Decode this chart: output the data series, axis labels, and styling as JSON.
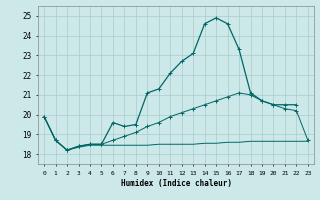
{
  "xlabel": "Humidex (Indice chaleur)",
  "bg_color": "#cce8e8",
  "grid_color": "#aacccc",
  "line_color": "#006666",
  "ylim": [
    17.5,
    25.5
  ],
  "xlim": [
    -0.5,
    23.5
  ],
  "yticks": [
    18,
    19,
    20,
    21,
    22,
    23,
    24,
    25
  ],
  "xticks": [
    0,
    1,
    2,
    3,
    4,
    5,
    6,
    7,
    8,
    9,
    10,
    11,
    12,
    13,
    14,
    15,
    16,
    17,
    18,
    19,
    20,
    21,
    22,
    23
  ],
  "series1_x": [
    0,
    1,
    2,
    3,
    4,
    5,
    6,
    7,
    8,
    9,
    10,
    11,
    12,
    13,
    14,
    15,
    16,
    17,
    18,
    19,
    20,
    21,
    22
  ],
  "series1_y": [
    19.9,
    18.7,
    18.2,
    18.4,
    18.5,
    18.5,
    19.6,
    19.4,
    19.5,
    21.1,
    21.3,
    22.1,
    22.7,
    23.1,
    24.6,
    24.9,
    24.6,
    23.3,
    21.1,
    20.7,
    20.5,
    20.5,
    20.5
  ],
  "series2_x": [
    0,
    1,
    2,
    3,
    4,
    5,
    6,
    7,
    8,
    9,
    10,
    11,
    12,
    13,
    14,
    15,
    16,
    17,
    18,
    19,
    20,
    21,
    22,
    23
  ],
  "series2_y": [
    19.9,
    18.7,
    18.2,
    18.35,
    18.45,
    18.45,
    18.45,
    18.45,
    18.45,
    18.45,
    18.5,
    18.5,
    18.5,
    18.5,
    18.55,
    18.55,
    18.6,
    18.6,
    18.65,
    18.65,
    18.65,
    18.65,
    18.65,
    18.65
  ],
  "series3_x": [
    0,
    1,
    2,
    3,
    4,
    5,
    6,
    7,
    8,
    9,
    10,
    11,
    12,
    13,
    14,
    15,
    16,
    17,
    18,
    19,
    20,
    21,
    22,
    23
  ],
  "series3_y": [
    19.9,
    18.7,
    18.2,
    18.4,
    18.5,
    18.5,
    18.7,
    18.9,
    19.1,
    19.4,
    19.6,
    19.9,
    20.1,
    20.3,
    20.5,
    20.7,
    20.9,
    21.1,
    21.0,
    20.7,
    20.5,
    20.3,
    20.2,
    18.7
  ]
}
